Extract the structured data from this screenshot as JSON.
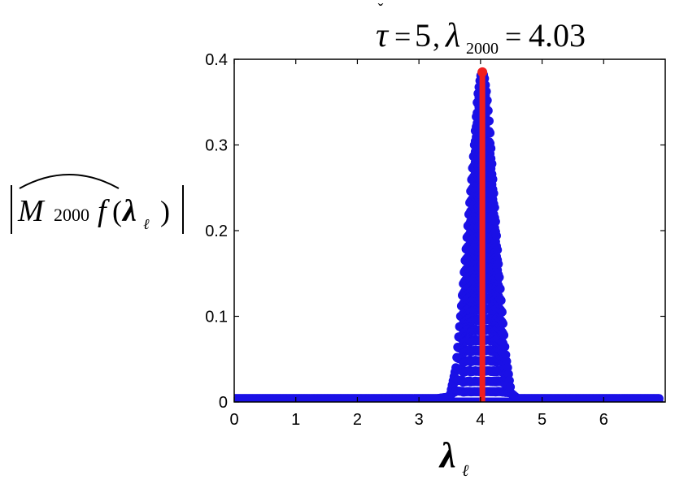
{
  "chart_data": {
    "type": "scatter",
    "title": {
      "tau_symbol": "τ",
      "tau_mark": "ˇ",
      "equals": "=",
      "tau_value": "5",
      "separator": ",",
      "lambda_symbol": "λ",
      "lambda_subscript": "2000",
      "lambda_value": "4.03"
    },
    "ylabel": {
      "operator": "M",
      "subscript": "2000",
      "function": "f",
      "open_paren": "(",
      "lambda_symbol": "λ",
      "lambda_subscript": "ℓ",
      "close_paren": ")"
    },
    "xlabel": {
      "lambda_symbol": "λ",
      "lambda_subscript": "ℓ"
    },
    "xlim": [
      0,
      7
    ],
    "ylim": [
      0,
      0.4
    ],
    "x_ticks": [
      0,
      1,
      2,
      3,
      4,
      5,
      6
    ],
    "x_tick_labels": [
      "0",
      "1",
      "2",
      "3",
      "4",
      "5",
      "6"
    ],
    "y_ticks": [
      0,
      0.1,
      0.2,
      0.3,
      0.4
    ],
    "y_tick_labels": [
      "0",
      "0.1",
      "0.2",
      "0.3",
      "0.4"
    ],
    "grid": false,
    "series": [
      {
        "color": "#1a10e6",
        "profile_x": [
          0,
          3.3,
          3.5,
          3.6,
          3.7,
          3.8,
          3.9,
          3.95,
          4.0,
          4.03,
          4.06,
          4.1,
          4.15,
          4.2,
          4.3,
          4.4,
          4.5,
          4.6,
          6.9
        ],
        "profile_y": [
          0.004,
          0.004,
          0.006,
          0.04,
          0.12,
          0.21,
          0.3,
          0.355,
          0.38,
          0.385,
          0.38,
          0.36,
          0.32,
          0.26,
          0.15,
          0.06,
          0.01,
          0.004,
          0.004
        ]
      }
    ],
    "highlight": {
      "x": 4.03,
      "y": 0.385,
      "color": "#f01e1e"
    }
  }
}
